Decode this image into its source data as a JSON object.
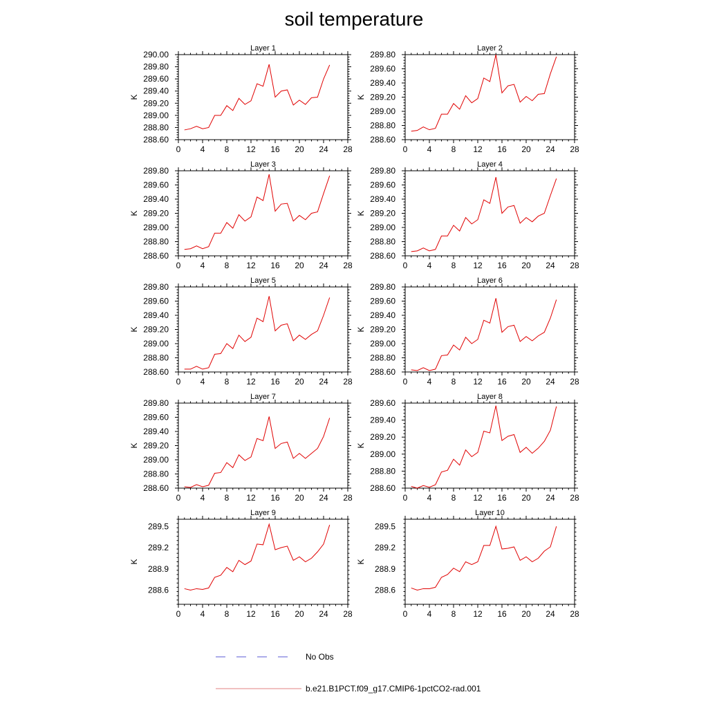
{
  "title": "soil temperature",
  "legend": [
    {
      "label": "No Obs",
      "color": "#5a5ad6",
      "style": "dashed"
    },
    {
      "label": "b.e21.B1PCT.f09_g17.CMIP6-1pctCO2-rad.001",
      "color": "#e08080",
      "style": "solid"
    }
  ],
  "colors": {
    "series": "#e00000",
    "no_obs": "#5a5ad6",
    "axis": "#000000"
  },
  "chart_data": [
    {
      "type": "line",
      "title": "Layer 1",
      "ylabel": "K",
      "xlim": [
        0,
        28
      ],
      "ylim": [
        288.6,
        290.0
      ],
      "xticks": [
        0,
        4,
        8,
        12,
        16,
        20,
        24,
        28
      ],
      "yticks": [
        "288.60",
        "288.80",
        "289.00",
        "289.20",
        "289.40",
        "289.60",
        "289.80",
        "290.00"
      ],
      "series": [
        {
          "name": "b.e21.B1PCT.f09_g17.CMIP6-1pctCO2-rad.001",
          "x": [
            1,
            2,
            3,
            4,
            5,
            6,
            7,
            8,
            9,
            10,
            11,
            12,
            13,
            14,
            15,
            16,
            17,
            18,
            19,
            20,
            21,
            22,
            23,
            24,
            25
          ],
          "y": [
            288.76,
            288.78,
            288.82,
            288.78,
            288.8,
            289.0,
            289.0,
            289.16,
            289.08,
            289.28,
            289.18,
            289.24,
            289.52,
            289.48,
            289.84,
            289.3,
            289.4,
            289.42,
            289.17,
            289.25,
            289.18,
            289.29,
            289.3,
            289.6,
            289.83
          ]
        }
      ]
    },
    {
      "type": "line",
      "title": "Layer 2",
      "ylabel": "K",
      "xlim": [
        0,
        28
      ],
      "ylim": [
        288.6,
        289.8
      ],
      "xticks": [
        0,
        4,
        8,
        12,
        16,
        20,
        24,
        28
      ],
      "yticks": [
        "288.60",
        "288.80",
        "289.00",
        "289.20",
        "289.40",
        "289.60",
        "289.80"
      ],
      "series": [
        {
          "name": "b.e21.B1PCT.f09_g17.CMIP6-1pctCO2-rad.001",
          "x": [
            1,
            2,
            3,
            4,
            5,
            6,
            7,
            8,
            9,
            10,
            11,
            12,
            13,
            14,
            15,
            16,
            17,
            18,
            19,
            20,
            21,
            22,
            23,
            24,
            25
          ],
          "y": [
            288.72,
            288.73,
            288.78,
            288.74,
            288.76,
            288.96,
            288.96,
            289.11,
            289.03,
            289.22,
            289.12,
            289.18,
            289.47,
            289.42,
            289.8,
            289.26,
            289.36,
            289.38,
            289.13,
            289.21,
            289.15,
            289.24,
            289.25,
            289.53,
            289.77
          ]
        }
      ]
    },
    {
      "type": "line",
      "title": "Layer 3",
      "ylabel": "K",
      "xlim": [
        0,
        28
      ],
      "ylim": [
        288.6,
        289.8
      ],
      "xticks": [
        0,
        4,
        8,
        12,
        16,
        20,
        24,
        28
      ],
      "yticks": [
        "288.60",
        "288.80",
        "289.00",
        "289.20",
        "289.40",
        "289.60",
        "289.80"
      ],
      "series": [
        {
          "name": "b.e21.B1PCT.f09_g17.CMIP6-1pctCO2-rad.001",
          "x": [
            1,
            2,
            3,
            4,
            5,
            6,
            7,
            8,
            9,
            10,
            11,
            12,
            13,
            14,
            15,
            16,
            17,
            18,
            19,
            20,
            21,
            22,
            23,
            24,
            25
          ],
          "y": [
            288.69,
            288.7,
            288.74,
            288.7,
            288.73,
            288.92,
            288.92,
            289.07,
            288.99,
            289.18,
            289.09,
            289.15,
            289.43,
            289.38,
            289.75,
            289.23,
            289.33,
            289.34,
            289.09,
            289.17,
            289.11,
            289.2,
            289.22,
            289.48,
            289.73
          ]
        }
      ]
    },
    {
      "type": "line",
      "title": "Layer 4",
      "ylabel": "K",
      "xlim": [
        0,
        28
      ],
      "ylim": [
        288.6,
        289.8
      ],
      "xticks": [
        0,
        4,
        8,
        12,
        16,
        20,
        24,
        28
      ],
      "yticks": [
        "288.60",
        "288.80",
        "289.00",
        "289.20",
        "289.40",
        "289.60",
        "289.80"
      ],
      "series": [
        {
          "name": "b.e21.B1PCT.f09_g17.CMIP6-1pctCO2-rad.001",
          "x": [
            1,
            2,
            3,
            4,
            5,
            6,
            7,
            8,
            9,
            10,
            11,
            12,
            13,
            14,
            15,
            16,
            17,
            18,
            19,
            20,
            21,
            22,
            23,
            24,
            25
          ],
          "y": [
            288.66,
            288.67,
            288.71,
            288.67,
            288.69,
            288.88,
            288.88,
            289.03,
            288.95,
            289.14,
            289.05,
            289.11,
            289.39,
            289.34,
            289.71,
            289.2,
            289.29,
            289.31,
            289.06,
            289.14,
            289.08,
            289.16,
            289.2,
            289.45,
            289.69
          ]
        }
      ]
    },
    {
      "type": "line",
      "title": "Layer 5",
      "ylabel": "K",
      "xlim": [
        0,
        28
      ],
      "ylim": [
        288.6,
        289.8
      ],
      "xticks": [
        0,
        4,
        8,
        12,
        16,
        20,
        24,
        28
      ],
      "yticks": [
        "288.60",
        "288.80",
        "289.00",
        "289.20",
        "289.40",
        "289.60",
        "289.80"
      ],
      "series": [
        {
          "name": "b.e21.B1PCT.f09_g17.CMIP6-1pctCO2-rad.001",
          "x": [
            1,
            2,
            3,
            4,
            5,
            6,
            7,
            8,
            9,
            10,
            11,
            12,
            13,
            14,
            15,
            16,
            17,
            18,
            19,
            20,
            21,
            22,
            23,
            24,
            25
          ],
          "y": [
            288.64,
            288.64,
            288.68,
            288.64,
            288.66,
            288.85,
            288.86,
            289.0,
            288.93,
            289.12,
            289.03,
            289.09,
            289.36,
            289.31,
            289.67,
            289.18,
            289.26,
            289.28,
            289.04,
            289.12,
            289.06,
            289.13,
            289.18,
            289.4,
            289.65
          ]
        }
      ]
    },
    {
      "type": "line",
      "title": "Layer 6",
      "ylabel": "K",
      "xlim": [
        0,
        28
      ],
      "ylim": [
        288.6,
        289.8
      ],
      "xticks": [
        0,
        4,
        8,
        12,
        16,
        20,
        24,
        28
      ],
      "yticks": [
        "288.60",
        "288.80",
        "289.00",
        "289.20",
        "289.40",
        "289.60",
        "289.80"
      ],
      "series": [
        {
          "name": "b.e21.B1PCT.f09_g17.CMIP6-1pctCO2-rad.001",
          "x": [
            1,
            2,
            3,
            4,
            5,
            6,
            7,
            8,
            9,
            10,
            11,
            12,
            13,
            14,
            15,
            16,
            17,
            18,
            19,
            20,
            21,
            22,
            23,
            24,
            25
          ],
          "y": [
            288.63,
            288.62,
            288.66,
            288.62,
            288.64,
            288.83,
            288.84,
            288.98,
            288.91,
            289.09,
            289.0,
            289.06,
            289.33,
            289.29,
            289.64,
            289.16,
            289.24,
            289.26,
            289.03,
            289.1,
            289.04,
            289.11,
            289.16,
            289.36,
            289.62
          ]
        }
      ]
    },
    {
      "type": "line",
      "title": "Layer 7",
      "ylabel": "K",
      "xlim": [
        0,
        28
      ],
      "ylim": [
        288.6,
        289.8
      ],
      "xticks": [
        0,
        4,
        8,
        12,
        16,
        20,
        24,
        28
      ],
      "yticks": [
        "288.60",
        "288.80",
        "289.00",
        "289.20",
        "289.40",
        "289.60",
        "289.80"
      ],
      "series": [
        {
          "name": "b.e21.B1PCT.f09_g17.CMIP6-1pctCO2-rad.001",
          "x": [
            1,
            2,
            3,
            4,
            5,
            6,
            7,
            8,
            9,
            10,
            11,
            12,
            13,
            14,
            15,
            16,
            17,
            18,
            19,
            20,
            21,
            22,
            23,
            24,
            25
          ],
          "y": [
            288.62,
            288.61,
            288.65,
            288.62,
            288.64,
            288.81,
            288.82,
            288.96,
            288.89,
            289.07,
            288.99,
            289.04,
            289.3,
            289.27,
            289.61,
            289.16,
            289.23,
            289.25,
            289.02,
            289.09,
            289.02,
            289.09,
            289.16,
            289.33,
            289.59
          ]
        }
      ]
    },
    {
      "type": "line",
      "title": "Layer 8",
      "ylabel": "K",
      "xlim": [
        0,
        28
      ],
      "ylim": [
        288.6,
        289.6
      ],
      "xticks": [
        0,
        4,
        8,
        12,
        16,
        20,
        24,
        28
      ],
      "yticks": [
        "288.60",
        "288.80",
        "289.00",
        "289.20",
        "289.40",
        "289.60"
      ],
      "series": [
        {
          "name": "b.e21.B1PCT.f09_g17.CMIP6-1pctCO2-rad.001",
          "x": [
            1,
            2,
            3,
            4,
            5,
            6,
            7,
            8,
            9,
            10,
            11,
            12,
            13,
            14,
            15,
            16,
            17,
            18,
            19,
            20,
            21,
            22,
            23,
            24,
            25
          ],
          "y": [
            288.62,
            288.6,
            288.63,
            288.61,
            288.64,
            288.79,
            288.81,
            288.94,
            288.87,
            289.05,
            288.97,
            289.02,
            289.27,
            289.25,
            289.57,
            289.16,
            289.21,
            289.23,
            289.02,
            289.08,
            289.01,
            289.07,
            289.15,
            289.28,
            289.56
          ]
        }
      ]
    },
    {
      "type": "line",
      "title": "Layer 9",
      "ylabel": "K",
      "xlim": [
        0,
        28
      ],
      "ylim": [
        288.4,
        289.6
      ],
      "xticks": [
        0,
        4,
        8,
        12,
        16,
        20,
        24,
        28
      ],
      "yticks": [
        "288.6",
        "288.9",
        "289.2",
        "289.5"
      ],
      "series": [
        {
          "name": "b.e21.B1PCT.f09_g17.CMIP6-1pctCO2-rad.001",
          "x": [
            1,
            2,
            3,
            4,
            5,
            6,
            7,
            8,
            9,
            10,
            11,
            12,
            13,
            14,
            15,
            16,
            17,
            18,
            19,
            20,
            21,
            22,
            23,
            24,
            25
          ],
          "y": [
            288.62,
            288.6,
            288.62,
            288.61,
            288.63,
            288.78,
            288.81,
            288.92,
            288.86,
            289.02,
            288.96,
            289.01,
            289.25,
            289.24,
            289.53,
            289.17,
            289.2,
            289.22,
            289.02,
            289.07,
            289.0,
            289.05,
            289.14,
            289.25,
            289.52
          ]
        }
      ]
    },
    {
      "type": "line",
      "title": "Layer 10",
      "ylabel": "K",
      "xlim": [
        0,
        28
      ],
      "ylim": [
        288.4,
        289.6
      ],
      "xticks": [
        0,
        4,
        8,
        12,
        16,
        20,
        24,
        28
      ],
      "yticks": [
        "288.6",
        "288.9",
        "289.2",
        "289.5"
      ],
      "series": [
        {
          "name": "b.e21.B1PCT.f09_g17.CMIP6-1pctCO2-rad.001",
          "x": [
            1,
            2,
            3,
            4,
            5,
            6,
            7,
            8,
            9,
            10,
            11,
            12,
            13,
            14,
            15,
            16,
            17,
            18,
            19,
            20,
            21,
            22,
            23,
            24,
            25
          ],
          "y": [
            288.63,
            288.6,
            288.62,
            288.62,
            288.64,
            288.78,
            288.82,
            288.91,
            288.86,
            289.0,
            288.96,
            289.0,
            289.23,
            289.23,
            289.5,
            289.18,
            289.19,
            289.21,
            289.02,
            289.07,
            289.0,
            289.05,
            289.15,
            289.21,
            289.5
          ]
        }
      ]
    }
  ]
}
